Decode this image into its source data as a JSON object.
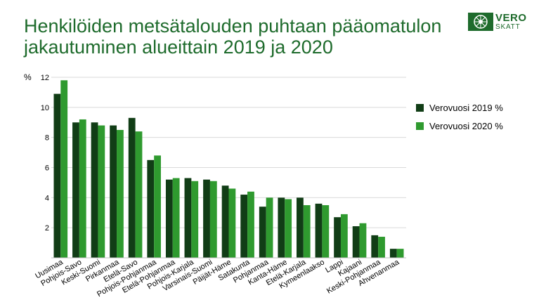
{
  "header": {
    "title_line1": "Henkilöiden metsätalouden puhtaan pääomatulon",
    "title_line2": "jakautuminen alueittain  2019 ja 2020"
  },
  "logo": {
    "text_top": "VERO",
    "text_bottom": "SKATT"
  },
  "colors": {
    "accent": "#1e6b2c"
  },
  "chart_data": {
    "type": "bar",
    "ylabel": "%",
    "ylim": [
      0,
      12
    ],
    "yticks": [
      2,
      4,
      6,
      8,
      10,
      12
    ],
    "grid": true,
    "legend_position": "right",
    "categories": [
      "Uusimaa",
      "Pohjois-Savo",
      "Keski-Suomi",
      "Pirkanmaa",
      "Etelä-Savo",
      "Pohjois-Pohjanmaa",
      "Etelä-Pohjanmaa",
      "Pohjois-Karjala",
      "Varsinais-Suomi",
      "Päijät-Häme",
      "Satakunta",
      "Pohjanmaa",
      "Kanta-Häme",
      "Etelä-Karjala",
      "Kymeenlaakso",
      "Lappi",
      "Kajaani",
      "Keski-Pohjanmaa",
      "Ahvenanmaa"
    ],
    "series": [
      {
        "name": "Verovuosi 2019 %",
        "color": "#113d16",
        "values": [
          10.9,
          9.0,
          9.0,
          8.8,
          9.3,
          6.5,
          5.2,
          5.3,
          5.2,
          4.8,
          4.2,
          3.4,
          4.0,
          4.0,
          3.6,
          2.7,
          2.1,
          1.5,
          0.6
        ]
      },
      {
        "name": "Verovuosi 2020 %",
        "color": "#2f9a2f",
        "values": [
          11.8,
          9.2,
          8.8,
          8.5,
          8.4,
          6.8,
          5.3,
          5.1,
          5.1,
          4.6,
          4.4,
          4.0,
          3.9,
          3.5,
          3.5,
          2.9,
          2.3,
          1.4,
          0.6
        ]
      }
    ]
  }
}
